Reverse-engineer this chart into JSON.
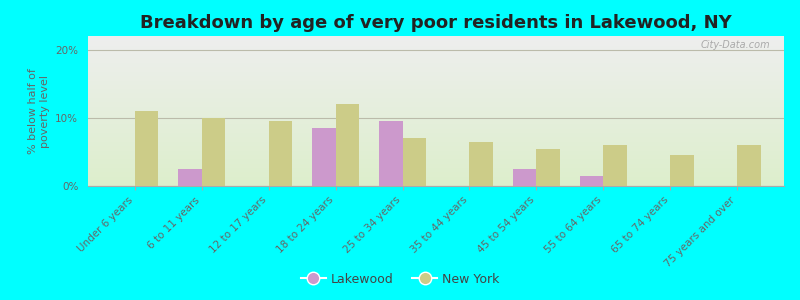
{
  "title": "Breakdown by age of very poor residents in Lakewood, NY",
  "ylabel": "% below half of\npoverty level",
  "categories": [
    "Under 6 years",
    "6 to 11 years",
    "12 to 17 years",
    "18 to 24 years",
    "25 to 34 years",
    "35 to 44 years",
    "45 to 54 years",
    "55 to 64 years",
    "65 to 74 years",
    "75 years and over"
  ],
  "lakewood_values": [
    0,
    2.5,
    0,
    8.5,
    9.5,
    0,
    2.5,
    1.5,
    0,
    0
  ],
  "newyork_values": [
    11.0,
    10.0,
    9.5,
    12.0,
    7.0,
    6.5,
    5.5,
    6.0,
    4.5,
    6.0
  ],
  "lakewood_color": "#cc99cc",
  "newyork_color": "#cccc88",
  "background_color": "#00ffff",
  "plot_bg_color_top": "#eeeeee",
  "plot_bg_color_bottom": "#ddeecc",
  "ylim": [
    0,
    22
  ],
  "yticks": [
    0,
    10,
    20
  ],
  "ytick_labels": [
    "0%",
    "10%",
    "20%"
  ],
  "bar_width": 0.35,
  "title_fontsize": 13,
  "axis_label_fontsize": 8,
  "tick_fontsize": 7.5,
  "legend_labels": [
    "Lakewood",
    "New York"
  ],
  "watermark": "City-Data.com"
}
